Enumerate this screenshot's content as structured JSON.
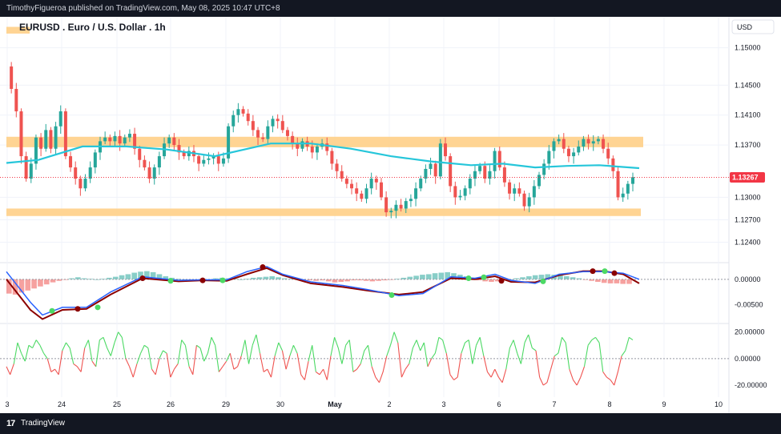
{
  "header": {
    "publish_line": "TimothyFigueroa published on TradingView.com, May 08, 2025 10:47 UTC+8"
  },
  "footer": {
    "logo_glyph": "17",
    "brand": "TradingView"
  },
  "chart_data": {
    "type": "candlestick",
    "title": "EURUSD . Euro / U.S. Dollar . 1h",
    "currency": "USD",
    "price_axis": {
      "ticks": [
        "1.15000",
        "1.14500",
        "1.14100",
        "1.13700",
        "1.13000",
        "1.12700",
        "1.12400"
      ],
      "range": [
        1.1218,
        1.1535
      ]
    },
    "current_price": {
      "label": "1.13267",
      "value": 1.13267,
      "color": "#f23645"
    },
    "time_axis": {
      "labels": [
        "3",
        "24",
        "25",
        "26",
        "29",
        "30",
        "May",
        "2",
        "3",
        "6",
        "7",
        "8",
        "9",
        "10"
      ]
    },
    "colors": {
      "up": "#26a69a",
      "down": "#ef5350",
      "ma": "#26c6da",
      "zone": "#ffcc80",
      "macd_line": "#2962ff",
      "signal_line": "#8b0000",
      "oscillator_up": "#4cd964",
      "oscillator_down": "#ef5350"
    },
    "zones": [
      {
        "name": "resistance",
        "from": 1.1367,
        "to": 1.1381
      },
      {
        "name": "support",
        "from": 1.1275,
        "to": 1.1285
      },
      {
        "name": "top-left",
        "from": 1.1519,
        "to": 1.1528
      }
    ],
    "price_path": [
      1.1475,
      1.1445,
      1.1415,
      1.1355,
      1.1325,
      1.1345,
      1.138,
      1.1365,
      1.139,
      1.1365,
      1.1395,
      1.1415,
      1.1355,
      1.134,
      1.1325,
      1.1312,
      1.1325,
      1.134,
      1.136,
      1.1375,
      1.138,
      1.1375,
      1.1382,
      1.1372,
      1.138,
      1.1385,
      1.1365,
      1.135,
      1.134,
      1.1325,
      1.134,
      1.1355,
      1.1372,
      1.138,
      1.137,
      1.136,
      1.1355,
      1.1362,
      1.1355,
      1.1345,
      1.135,
      1.1352,
      1.1355,
      1.1345,
      1.1352,
      1.1395,
      1.141,
      1.1418,
      1.1412,
      1.1402,
      1.139,
      1.138,
      1.1378,
      1.1395,
      1.1405,
      1.1402,
      1.139,
      1.1382,
      1.1372,
      1.1365,
      1.1375,
      1.1368,
      1.136,
      1.1368,
      1.1372,
      1.1362,
      1.1345,
      1.1335,
      1.1325,
      1.1318,
      1.1312,
      1.1305,
      1.1298,
      1.1312,
      1.1325,
      1.132,
      1.13,
      1.128,
      1.1282,
      1.129,
      1.1285,
      1.1295,
      1.1298,
      1.1312,
      1.1325,
      1.1338,
      1.1345,
      1.1328,
      1.1372,
      1.1355,
      1.1315,
      1.13,
      1.1302,
      1.1312,
      1.1325,
      1.1335,
      1.1342,
      1.1325,
      1.1335,
      1.1362,
      1.134,
      1.132,
      1.1305,
      1.1312,
      1.1305,
      1.1288,
      1.13,
      1.1315,
      1.133,
      1.1345,
      1.1362,
      1.1375,
      1.1378,
      1.1365,
      1.1355,
      1.136,
      1.1368,
      1.1378,
      1.1372,
      1.1375,
      1.1378,
      1.1365,
      1.1352,
      1.1335,
      1.13,
      1.1305,
      1.1318,
      1.1327
    ],
    "moving_average": [
      [
        0,
        1.1346
      ],
      [
        40,
        1.135
      ],
      [
        95,
        1.1368
      ],
      [
        150,
        1.1368
      ],
      [
        200,
        1.1364
      ],
      [
        260,
        1.1355
      ],
      [
        330,
        1.1372
      ],
      [
        380,
        1.1372
      ],
      [
        430,
        1.1365
      ],
      [
        480,
        1.1355
      ],
      [
        530,
        1.1348
      ],
      [
        580,
        1.1343
      ],
      [
        620,
        1.1345
      ],
      [
        660,
        1.134
      ],
      [
        700,
        1.1342
      ],
      [
        740,
        1.1343
      ],
      [
        790,
        1.1339
      ]
    ],
    "macd": {
      "axis_ticks": [
        "0.00000",
        "-0.00500"
      ],
      "range": [
        -0.0082,
        0.0028
      ],
      "histogram": [
        -0.0028,
        -0.003,
        -0.0026,
        -0.0022,
        -0.0018,
        -0.0014,
        -0.001,
        -0.0006,
        -0.0003,
        -0.0001,
        0.0002,
        0.0004,
        0.0002,
        0.0001,
        0.0,
        0.0001,
        0.0003,
        0.0005,
        0.0008,
        0.001,
        0.0013,
        0.0015,
        0.0016,
        0.0014,
        0.001,
        0.0006,
        0.0003,
        0.0001,
        0.0,
        -0.0001,
        -0.0002,
        -0.0001,
        0.0,
        0.0002,
        0.0003,
        0.0002,
        0.0001,
        0.0,
        0.0001,
        0.0003,
        0.0004,
        0.0005,
        0.0006,
        0.0004,
        0.0002,
        0.0001,
        0.0,
        -0.0001,
        -0.0002,
        -0.0003,
        -0.0002,
        -0.0004,
        -0.0006,
        -0.0005,
        -0.0004,
        -0.0002,
        -0.0002,
        -0.0003,
        -0.0004,
        -0.0003,
        -0.0002,
        -0.0001,
        0.0001,
        0.0003,
        0.0005,
        0.0007,
        0.0009,
        0.001,
        0.0012,
        0.0013,
        0.0014,
        0.0012,
        0.0009,
        0.0006,
        0.0002,
        -0.0002,
        -0.0004,
        -0.0005,
        -0.0004,
        -0.0002,
        0.0,
        0.0002,
        0.0004,
        0.0006,
        0.0008,
        0.0009,
        0.001,
        0.0009,
        0.0008,
        0.0006,
        0.0004,
        0.0002,
        -0.0001,
        -0.0003,
        -0.0005,
        -0.0007,
        -0.0008,
        -0.0008,
        -0.0009,
        -0.0009
      ],
      "macd_line": [
        [
          0,
          0.0015
        ],
        [
          30,
          -0.0045
        ],
        [
          45,
          -0.007
        ],
        [
          70,
          -0.0055
        ],
        [
          100,
          -0.0055
        ],
        [
          130,
          -0.0025
        ],
        [
          170,
          0.0005
        ],
        [
          215,
          -0.0002
        ],
        [
          245,
          -0.0001
        ],
        [
          275,
          -0.0001
        ],
        [
          300,
          0.0015
        ],
        [
          325,
          0.0025
        ],
        [
          345,
          0.001
        ],
        [
          380,
          -0.0005
        ],
        [
          420,
          -0.0012
        ],
        [
          450,
          -0.002
        ],
        [
          490,
          -0.0032
        ],
        [
          520,
          -0.0028
        ],
        [
          555,
          0.0005
        ],
        [
          585,
          0.0002
        ],
        [
          610,
          0.001
        ],
        [
          630,
          -0.0002
        ],
        [
          660,
          -0.0008
        ],
        [
          690,
          0.001
        ],
        [
          720,
          0.0015
        ],
        [
          745,
          0.0015
        ],
        [
          770,
          0.0012
        ],
        [
          790,
          0.0
        ]
      ],
      "signal_line": [
        [
          0,
          0.0
        ],
        [
          30,
          -0.006
        ],
        [
          45,
          -0.0078
        ],
        [
          70,
          -0.006
        ],
        [
          100,
          -0.0058
        ],
        [
          130,
          -0.003
        ],
        [
          170,
          0.0002
        ],
        [
          215,
          -0.0004
        ],
        [
          245,
          -0.0002
        ],
        [
          275,
          -0.0003
        ],
        [
          300,
          0.001
        ],
        [
          325,
          0.0022
        ],
        [
          345,
          0.0008
        ],
        [
          380,
          -0.0008
        ],
        [
          420,
          -0.0015
        ],
        [
          450,
          -0.0022
        ],
        [
          490,
          -0.003
        ],
        [
          520,
          -0.0025
        ],
        [
          555,
          0.0002
        ],
        [
          585,
          0.0
        ],
        [
          610,
          0.0006
        ],
        [
          630,
          -0.0005
        ],
        [
          660,
          -0.0006
        ],
        [
          690,
          0.0008
        ],
        [
          720,
          0.0016
        ],
        [
          745,
          0.0016
        ],
        [
          770,
          0.001
        ],
        [
          790,
          -0.0008
        ]
      ],
      "crosses": [
        {
          "x": 65,
          "y": -0.0062,
          "color": "#4cd964"
        },
        {
          "x": 97,
          "y": -0.0058,
          "color": "#8b0000"
        },
        {
          "x": 122,
          "y": -0.0055,
          "color": "#4cd964"
        },
        {
          "x": 178,
          "y": 0.0002,
          "color": "#8b0000"
        },
        {
          "x": 213,
          "y": -0.0003,
          "color": "#4cd964"
        },
        {
          "x": 253,
          "y": -0.0002,
          "color": "#8b0000"
        },
        {
          "x": 278,
          "y": -0.0002,
          "color": "#4cd964"
        },
        {
          "x": 328,
          "y": 0.0024,
          "color": "#8b0000"
        },
        {
          "x": 489,
          "y": -0.0031,
          "color": "#4cd964"
        },
        {
          "x": 585,
          "y": 0.0002,
          "color": "#4cd964"
        },
        {
          "x": 604,
          "y": 0.0004,
          "color": "#4cd964"
        },
        {
          "x": 626,
          "y": -0.0003,
          "color": "#8b0000"
        },
        {
          "x": 678,
          "y": -0.0004,
          "color": "#4cd964"
        },
        {
          "x": 740,
          "y": 0.0016,
          "color": "#8b0000"
        },
        {
          "x": 755,
          "y": 0.0016,
          "color": "#4cd964"
        },
        {
          "x": 767,
          "y": 0.0012,
          "color": "#8b0000"
        }
      ]
    },
    "oscillator": {
      "axis_ticks": [
        "20.00000",
        "0.00000",
        "-20.00000"
      ],
      "range": [
        -26,
        24
      ],
      "values": [
        -6,
        -12,
        -4,
        12,
        4,
        -2,
        10,
        8,
        14,
        10,
        4,
        0,
        -10,
        -8,
        -12,
        6,
        12,
        8,
        -4,
        -6,
        -10,
        8,
        14,
        -2,
        -6,
        14,
        16,
        8,
        2,
        12,
        20,
        16,
        0,
        -6,
        -14,
        -4,
        4,
        10,
        8,
        -8,
        -12,
        0,
        6,
        4,
        -14,
        -8,
        -4,
        14,
        10,
        -6,
        -12,
        10,
        8,
        -2,
        4,
        16,
        10,
        -10,
        -6,
        -2,
        4,
        -8,
        -6,
        2,
        14,
        -4,
        10,
        18,
        4,
        -10,
        -8,
        -14,
        2,
        12,
        6,
        -8,
        2,
        10,
        4,
        -12,
        -16,
        -2,
        10,
        -10,
        -12,
        -8,
        -16,
        2,
        16,
        8,
        -4,
        10,
        14,
        -10,
        -8,
        -4,
        6,
        10,
        -6,
        -14,
        -18,
        -10,
        2,
        10,
        20,
        12,
        -14,
        -8,
        -4,
        8,
        14,
        6,
        12,
        -6,
        0,
        4,
        16,
        14,
        4,
        -12,
        -16,
        -14,
        4,
        12,
        14,
        -4,
        10,
        16,
        2,
        -10,
        -14,
        -8,
        -14,
        -18,
        -8,
        8,
        14,
        4,
        -4,
        12,
        18,
        8,
        6,
        -14,
        -20,
        -18,
        -8,
        2,
        4,
        16,
        12,
        -8,
        -16,
        -20,
        -14,
        -6,
        10,
        14,
        16,
        12,
        -10,
        -14,
        -16,
        -20,
        -10,
        2,
        6,
        16,
        14
      ]
    }
  }
}
